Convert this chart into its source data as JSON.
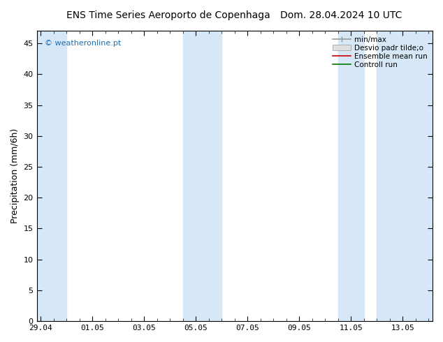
{
  "title_left": "ENS Time Series Aeroporto de Copenhaga",
  "title_right": "Dom. 28.04.2024 10 UTC",
  "ylabel": "Precipitation (mm/6h)",
  "ylim": [
    0,
    47
  ],
  "yticks": [
    0,
    5,
    10,
    15,
    20,
    25,
    30,
    35,
    40,
    45
  ],
  "xtick_labels": [
    "29.04",
    "01.05",
    "03.05",
    "05.05",
    "07.05",
    "09.05",
    "11.05",
    "13.05"
  ],
  "xtick_positions": [
    0,
    2,
    4,
    6,
    8,
    10,
    12,
    14
  ],
  "xlim": [
    -0.15,
    15.15
  ],
  "blue_bands": [
    [
      -0.15,
      1.0
    ],
    [
      5.5,
      7.0
    ],
    [
      11.5,
      12.5
    ],
    [
      13.0,
      15.15
    ]
  ],
  "band_color": "#d6e8f7",
  "background_color": "#ffffff",
  "legend_entries": [
    "min/max",
    "Desvio padr tilde;o",
    "Ensemble mean run",
    "Controll run"
  ],
  "legend_line_colors": [
    "#999999",
    "#cccccc",
    "#cc0000",
    "#007700"
  ],
  "watermark_text": "© weatheronline.pt",
  "watermark_color": "#1a6db5",
  "title_fontsize": 10,
  "axis_fontsize": 9,
  "tick_fontsize": 8,
  "legend_fontsize": 7.5
}
